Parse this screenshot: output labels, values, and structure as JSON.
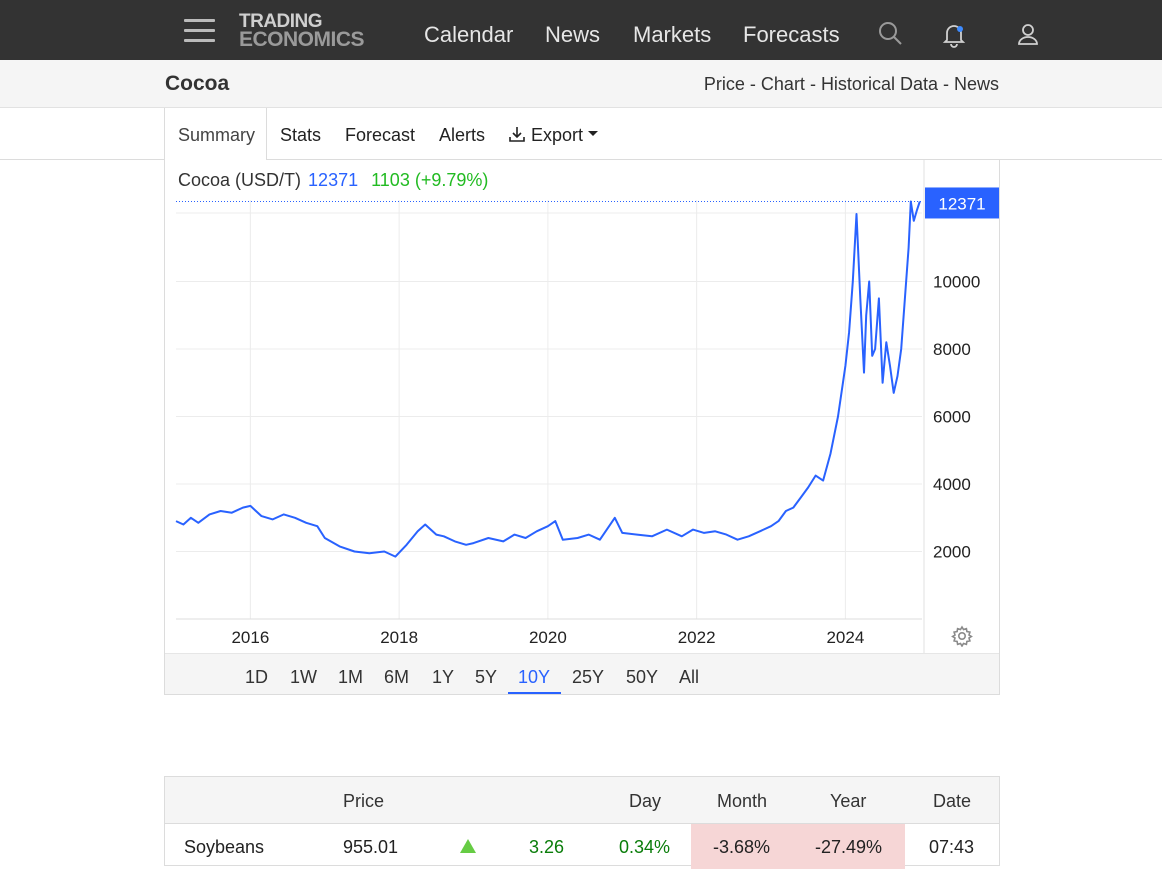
{
  "nav": {
    "logo_line1": "TRADING",
    "logo_line2": "ECONOMICS",
    "links": [
      "Calendar",
      "News",
      "Markets",
      "Forecasts"
    ]
  },
  "header": {
    "title": "Cocoa",
    "subnav": [
      "Price",
      "Chart",
      "Historical Data",
      "News"
    ],
    "separator": " - "
  },
  "tabs": {
    "active": "Summary",
    "items": [
      "Stats",
      "Forecast",
      "Alerts"
    ],
    "export": "Export"
  },
  "chart_legend": {
    "name": "Cocoa (USD/T)",
    "price": "12371",
    "change": "1103 (+9.79%)"
  },
  "chart_data": {
    "type": "line",
    "title": "Cocoa (USD/T)",
    "xlabel": "",
    "ylabel": "",
    "x_ticks": [
      "2016",
      "2018",
      "2020",
      "2022",
      "2024"
    ],
    "y_ticks": [
      "2000",
      "4000",
      "6000",
      "8000",
      "10000"
    ],
    "ylim": [
      0,
      12400
    ],
    "grid": true,
    "last_value_label": "12371",
    "series": [
      {
        "color": "#2962ff",
        "x": [
          2015.0,
          2015.1,
          2015.2,
          2015.3,
          2015.45,
          2015.6,
          2015.75,
          2015.9,
          2016.0,
          2016.15,
          2016.3,
          2016.45,
          2016.6,
          2016.75,
          2016.9,
          2017.0,
          2017.2,
          2017.4,
          2017.6,
          2017.8,
          2017.95,
          2018.1,
          2018.25,
          2018.35,
          2018.5,
          2018.6,
          2018.75,
          2018.9,
          2019.0,
          2019.2,
          2019.4,
          2019.55,
          2019.7,
          2019.85,
          2020.0,
          2020.1,
          2020.2,
          2020.4,
          2020.55,
          2020.7,
          2020.9,
          2021.0,
          2021.2,
          2021.4,
          2021.6,
          2021.8,
          2021.95,
          2022.1,
          2022.25,
          2022.4,
          2022.55,
          2022.7,
          2022.85,
          2023.0,
          2023.1,
          2023.2,
          2023.3,
          2023.4,
          2023.5,
          2023.6,
          2023.7,
          2023.8,
          2023.9,
          2024.0,
          2024.05,
          2024.1,
          2024.15,
          2024.2,
          2024.25,
          2024.28,
          2024.32,
          2024.36,
          2024.4,
          2024.45,
          2024.5,
          2024.55,
          2024.6,
          2024.65,
          2024.7,
          2024.75,
          2024.8,
          2024.85,
          2024.88,
          2024.92,
          2024.96,
          2025.0
        ],
        "y": [
          2900,
          2800,
          3000,
          2850,
          3100,
          3200,
          3150,
          3300,
          3350,
          3050,
          2950,
          3100,
          3000,
          2850,
          2750,
          2400,
          2150,
          2000,
          1950,
          2000,
          1850,
          2200,
          2600,
          2800,
          2500,
          2450,
          2300,
          2200,
          2250,
          2400,
          2300,
          2500,
          2400,
          2600,
          2750,
          2900,
          2350,
          2400,
          2500,
          2350,
          3000,
          2550,
          2500,
          2450,
          2650,
          2450,
          2650,
          2550,
          2600,
          2500,
          2350,
          2450,
          2600,
          2750,
          2900,
          3200,
          3300,
          3600,
          3900,
          4250,
          4100,
          4900,
          6000,
          7500,
          8500,
          10000,
          12000,
          9500,
          7300,
          9000,
          10000,
          7800,
          8000,
          9500,
          7000,
          8200,
          7500,
          6700,
          7200,
          8000,
          9500,
          11000,
          12371,
          11800,
          12100,
          12371
        ]
      }
    ]
  },
  "ranges": {
    "items": [
      "1D",
      "1W",
      "1M",
      "6M",
      "1Y",
      "5Y",
      "10Y",
      "25Y",
      "50Y",
      "All"
    ],
    "active": "10Y"
  },
  "table": {
    "headers": {
      "price": "Price",
      "day": "Day",
      "month": "Month",
      "year": "Year",
      "date": "Date"
    },
    "rows": [
      {
        "name": "Soybeans",
        "price": "955.01",
        "change": "3.26",
        "day": "0.34%",
        "month": "-3.68%",
        "year": "-27.49%",
        "date": "07:43"
      }
    ]
  },
  "colors": {
    "accent": "#2962ff",
    "positive": "#22bb22",
    "topbar": "#333333",
    "negative_cell": "#f6d6d6"
  }
}
